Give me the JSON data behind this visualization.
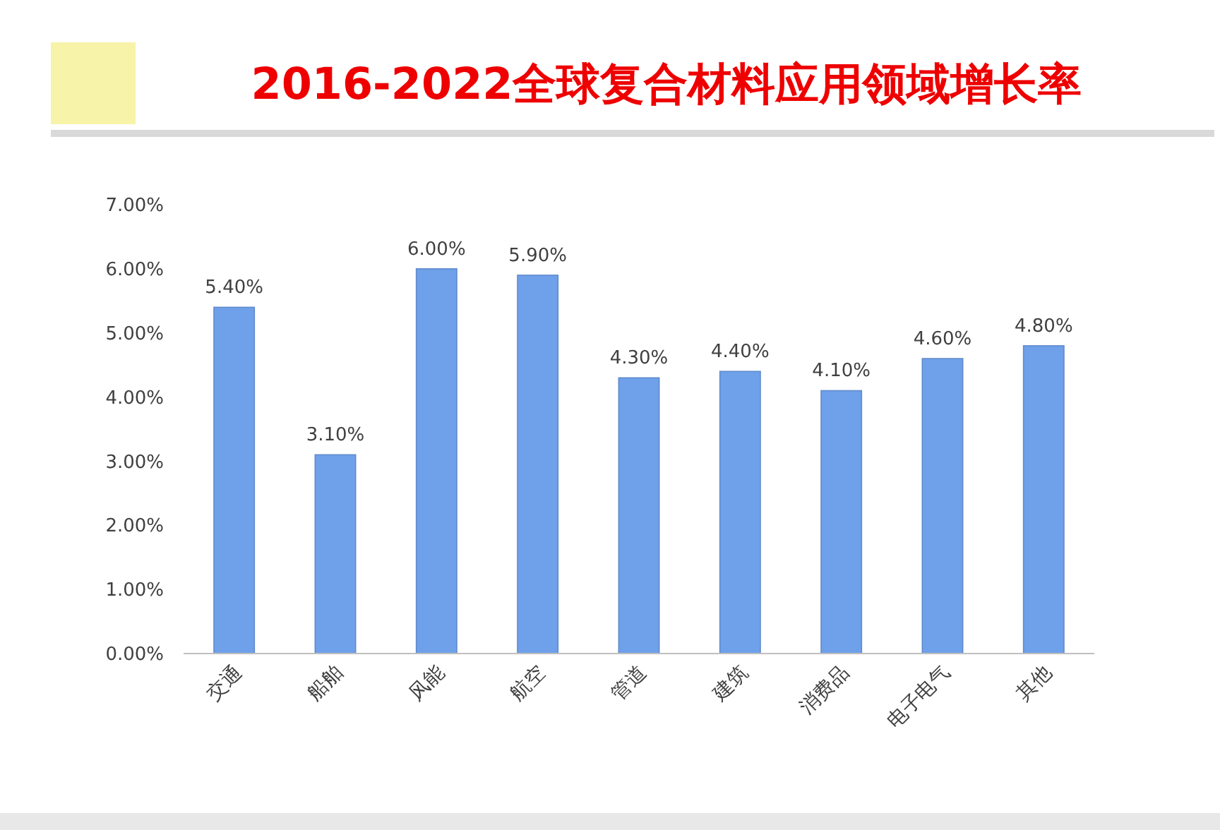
{
  "chart_data": {
    "type": "bar",
    "title": "2016-2022全球复合材料应用领域增长率",
    "categories": [
      "交通",
      "船舶",
      "风能",
      "航空",
      "管道",
      "建筑",
      "消费品",
      "电子电气",
      "其他"
    ],
    "values": [
      5.4,
      3.1,
      6.0,
      5.9,
      4.3,
      4.4,
      4.1,
      4.6,
      4.8
    ],
    "value_labels": [
      "5.40%",
      "3.10%",
      "6.00%",
      "5.90%",
      "4.30%",
      "4.40%",
      "4.10%",
      "4.60%",
      "4.80%"
    ],
    "color": "#6fa0ea",
    "ylim": [
      0,
      7
    ],
    "yticks": [
      {
        "value": 0,
        "label": "0.00%"
      },
      {
        "value": 1,
        "label": "1.00%"
      },
      {
        "value": 2,
        "label": "2.00%"
      },
      {
        "value": 3,
        "label": "3.00%"
      },
      {
        "value": 4,
        "label": "4.00%"
      },
      {
        "value": 5,
        "label": "5.00%"
      },
      {
        "value": 6,
        "label": "6.00%"
      },
      {
        "value": 7,
        "label": "7.00%"
      }
    ],
    "grid": false
  }
}
